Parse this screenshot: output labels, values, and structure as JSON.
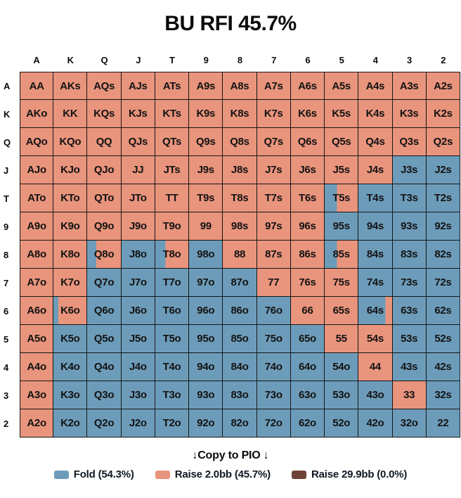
{
  "title": "BU RFI 45.7%",
  "copy_line": "↓Copy to PIO ↓",
  "colors": {
    "fold": "#6D9CBA",
    "raise_small": "#E9947C",
    "raise_big": "#6E4337",
    "grid_border": "#161616",
    "background": "#FFFFFF"
  },
  "legend": [
    {
      "name": "fold",
      "label": "Fold (54.3%)",
      "color": "#6D9CBA"
    },
    {
      "name": "raise-2bb",
      "label": "Raise 2.0bb (45.7%)",
      "color": "#E9947C"
    },
    {
      "name": "raise-29.9bb",
      "label": "Raise 29.9bb (0.0%)",
      "color": "#6E4337"
    }
  ],
  "chart_data": {
    "type": "heatmap",
    "title": "BU RFI 45.7%",
    "legend_position": "bottom",
    "value_meaning": "fold_percent_of_cell; remainder is Raise 2.0bb; fold drawn left-to-right in blue, raise in salmon",
    "column_headers": [
      "A",
      "K",
      "Q",
      "J",
      "T",
      "9",
      "8",
      "7",
      "6",
      "5",
      "4",
      "3",
      "2"
    ],
    "row_headers": [
      "A",
      "K",
      "Q",
      "J",
      "T",
      "9",
      "8",
      "7",
      "6",
      "5",
      "4",
      "3",
      "2"
    ],
    "cells": [
      [
        [
          "AA",
          0
        ],
        [
          "AKs",
          0
        ],
        [
          "AQs",
          0
        ],
        [
          "AJs",
          0
        ],
        [
          "ATs",
          0
        ],
        [
          "A9s",
          0
        ],
        [
          "A8s",
          0
        ],
        [
          "A7s",
          0
        ],
        [
          "A6s",
          0
        ],
        [
          "A5s",
          0
        ],
        [
          "A4s",
          0
        ],
        [
          "A3s",
          0
        ],
        [
          "A2s",
          0
        ]
      ],
      [
        [
          "AKo",
          0
        ],
        [
          "KK",
          0
        ],
        [
          "KQs",
          0
        ],
        [
          "KJs",
          0
        ],
        [
          "KTs",
          0
        ],
        [
          "K9s",
          0
        ],
        [
          "K8s",
          0
        ],
        [
          "K7s",
          0
        ],
        [
          "K6s",
          0
        ],
        [
          "K5s",
          0
        ],
        [
          "K4s",
          0
        ],
        [
          "K3s",
          0
        ],
        [
          "K2s",
          0
        ]
      ],
      [
        [
          "AQo",
          0
        ],
        [
          "KQo",
          0
        ],
        [
          "QQ",
          0
        ],
        [
          "QJs",
          0
        ],
        [
          "QTs",
          0
        ],
        [
          "Q9s",
          0
        ],
        [
          "Q8s",
          0
        ],
        [
          "Q7s",
          0
        ],
        [
          "Q6s",
          0
        ],
        [
          "Q5s",
          0
        ],
        [
          "Q4s",
          0
        ],
        [
          "Q3s",
          0
        ],
        [
          "Q2s",
          0
        ]
      ],
      [
        [
          "AJo",
          0
        ],
        [
          "KJo",
          0
        ],
        [
          "QJo",
          0
        ],
        [
          "JJ",
          0
        ],
        [
          "JTs",
          0
        ],
        [
          "J9s",
          0
        ],
        [
          "J8s",
          0
        ],
        [
          "J7s",
          0
        ],
        [
          "J6s",
          0
        ],
        [
          "J5s",
          0
        ],
        [
          "J4s",
          0
        ],
        [
          "J3s",
          100
        ],
        [
          "J2s",
          100
        ]
      ],
      [
        [
          "ATo",
          0
        ],
        [
          "KTo",
          0
        ],
        [
          "QTo",
          0
        ],
        [
          "JTo",
          0
        ],
        [
          "TT",
          0
        ],
        [
          "T9s",
          0
        ],
        [
          "T8s",
          0
        ],
        [
          "T7s",
          0
        ],
        [
          "T6s",
          0
        ],
        [
          "T5s",
          37
        ],
        [
          "T4s",
          100
        ],
        [
          "T3s",
          100
        ],
        [
          "T2s",
          100
        ]
      ],
      [
        [
          "A9o",
          0
        ],
        [
          "K9o",
          0
        ],
        [
          "Q9o",
          0
        ],
        [
          "J9o",
          0
        ],
        [
          "T9o",
          0
        ],
        [
          "99",
          0
        ],
        [
          "98s",
          0
        ],
        [
          "97s",
          0
        ],
        [
          "96s",
          0
        ],
        [
          "95s",
          100
        ],
        [
          "94s",
          100
        ],
        [
          "93s",
          100
        ],
        [
          "92s",
          100
        ]
      ],
      [
        [
          "A8o",
          0
        ],
        [
          "K8o",
          0
        ],
        [
          "Q8o",
          27
        ],
        [
          "J8o",
          100
        ],
        [
          "T8o",
          31
        ],
        [
          "98o",
          100
        ],
        [
          "88",
          0
        ],
        [
          "87s",
          0
        ],
        [
          "86s",
          0
        ],
        [
          "85s",
          37
        ],
        [
          "84s",
          100
        ],
        [
          "83s",
          100
        ],
        [
          "82s",
          100
        ]
      ],
      [
        [
          "A7o",
          0
        ],
        [
          "K7o",
          0
        ],
        [
          "Q7o",
          100
        ],
        [
          "J7o",
          100
        ],
        [
          "T7o",
          100
        ],
        [
          "97o",
          100
        ],
        [
          "87o",
          100
        ],
        [
          "77",
          0
        ],
        [
          "76s",
          0
        ],
        [
          "75s",
          0
        ],
        [
          "74s",
          100
        ],
        [
          "73s",
          100
        ],
        [
          "72s",
          100
        ]
      ],
      [
        [
          "A6o",
          0
        ],
        [
          "K6o",
          15
        ],
        [
          "Q6o",
          100
        ],
        [
          "J6o",
          100
        ],
        [
          "T6o",
          100
        ],
        [
          "96o",
          100
        ],
        [
          "86o",
          100
        ],
        [
          "76o",
          100
        ],
        [
          "66",
          0
        ],
        [
          "65s",
          0
        ],
        [
          "64s",
          80
        ],
        [
          "63s",
          100
        ],
        [
          "62s",
          100
        ]
      ],
      [
        [
          "A5o",
          0
        ],
        [
          "K5o",
          100
        ],
        [
          "Q5o",
          100
        ],
        [
          "J5o",
          100
        ],
        [
          "T5o",
          100
        ],
        [
          "95o",
          100
        ],
        [
          "85o",
          100
        ],
        [
          "75o",
          100
        ],
        [
          "65o",
          100
        ],
        [
          "55",
          0
        ],
        [
          "54s",
          0
        ],
        [
          "53s",
          100
        ],
        [
          "52s",
          100
        ]
      ],
      [
        [
          "A4o",
          0
        ],
        [
          "K4o",
          100
        ],
        [
          "Q4o",
          100
        ],
        [
          "J4o",
          100
        ],
        [
          "T4o",
          100
        ],
        [
          "94o",
          100
        ],
        [
          "84o",
          100
        ],
        [
          "74o",
          100
        ],
        [
          "64o",
          100
        ],
        [
          "54o",
          100
        ],
        [
          "44",
          0
        ],
        [
          "43s",
          100
        ],
        [
          "42s",
          100
        ]
      ],
      [
        [
          "A3o",
          0
        ],
        [
          "K3o",
          100
        ],
        [
          "Q3o",
          100
        ],
        [
          "J3o",
          100
        ],
        [
          "T3o",
          100
        ],
        [
          "93o",
          100
        ],
        [
          "83o",
          100
        ],
        [
          "73o",
          100
        ],
        [
          "63o",
          100
        ],
        [
          "53o",
          100
        ],
        [
          "43o",
          100
        ],
        [
          "33",
          0
        ],
        [
          "32s",
          100
        ]
      ],
      [
        [
          "A2o",
          0
        ],
        [
          "K2o",
          100
        ],
        [
          "Q2o",
          100
        ],
        [
          "J2o",
          100
        ],
        [
          "T2o",
          100
        ],
        [
          "92o",
          100
        ],
        [
          "82o",
          100
        ],
        [
          "72o",
          100
        ],
        [
          "62o",
          100
        ],
        [
          "52o",
          100
        ],
        [
          "42o",
          100
        ],
        [
          "32o",
          100
        ],
        [
          "22",
          100
        ]
      ]
    ]
  }
}
